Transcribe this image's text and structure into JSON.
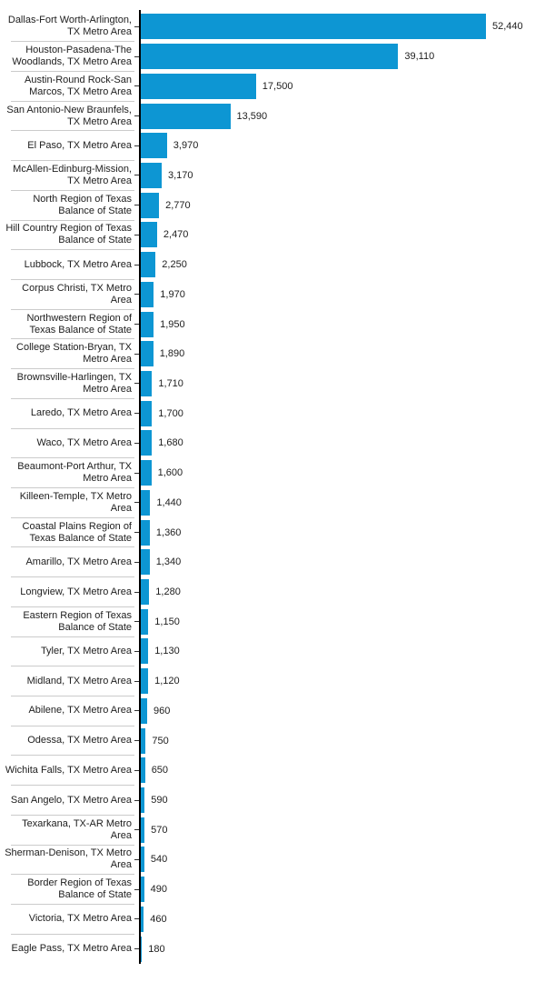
{
  "chart_data": {
    "type": "bar",
    "orientation": "horizontal",
    "title": "",
    "xlabel": "",
    "ylabel": "",
    "legend": false,
    "grid": false,
    "axis_range_hint": [
      0,
      61000
    ],
    "bar_color": "#0d96d3",
    "axis_color": "#000000",
    "separator_color": "#cbcbcb",
    "text_color": "#202020",
    "categories": [
      "Dallas-Fort Worth-Arlington, TX Metro Area",
      "Houston-Pasadena-The Woodlands, TX Metro Area",
      "Austin-Round Rock-San Marcos, TX Metro Area",
      "San Antonio-New Braunfels, TX Metro Area",
      "El Paso, TX Metro Area",
      "McAllen-Edinburg-Mission, TX Metro Area",
      "North Region of Texas Balance of State",
      "Hill Country Region of Texas Balance of State",
      "Lubbock, TX Metro Area",
      "Corpus Christi, TX Metro Area",
      "Northwestern Region of Texas Balance of State",
      "College Station-Bryan, TX Metro Area",
      "Brownsville-Harlingen, TX Metro Area",
      "Laredo, TX Metro Area",
      "Waco, TX Metro Area",
      "Beaumont-Port Arthur, TX Metro Area",
      "Killeen-Temple, TX Metro Area",
      "Coastal Plains Region of Texas Balance of State",
      "Amarillo, TX Metro Area",
      "Longview, TX Metro Area",
      "Eastern Region of Texas Balance of State",
      "Tyler, TX Metro Area",
      "Midland, TX Metro Area",
      "Abilene, TX Metro Area",
      "Odessa, TX Metro Area",
      "Wichita Falls, TX Metro Area",
      "San Angelo, TX Metro Area",
      "Texarkana, TX-AR Metro Area",
      "Sherman-Denison, TX Metro Area",
      "Border Region of Texas Balance of State",
      "Victoria, TX Metro Area",
      "Eagle Pass, TX Metro Area"
    ],
    "values": [
      52440,
      39110,
      17500,
      13590,
      3970,
      3170,
      2770,
      2470,
      2250,
      1970,
      1950,
      1890,
      1710,
      1700,
      1680,
      1600,
      1440,
      1360,
      1340,
      1280,
      1150,
      1130,
      1120,
      960,
      750,
      650,
      590,
      570,
      540,
      490,
      460,
      180
    ],
    "value_labels": [
      "52,440",
      "39,110",
      "17,500",
      "13,590",
      "3,970",
      "3,170",
      "2,770",
      "2,470",
      "2,250",
      "1,970",
      "1,950",
      "1,890",
      "1,710",
      "1,700",
      "1,680",
      "1,600",
      "1,440",
      "1,360",
      "1,340",
      "1,280",
      "1,150",
      "1,130",
      "1,120",
      "960",
      "750",
      "650",
      "590",
      "570",
      "540",
      "490",
      "460",
      "180"
    ]
  }
}
